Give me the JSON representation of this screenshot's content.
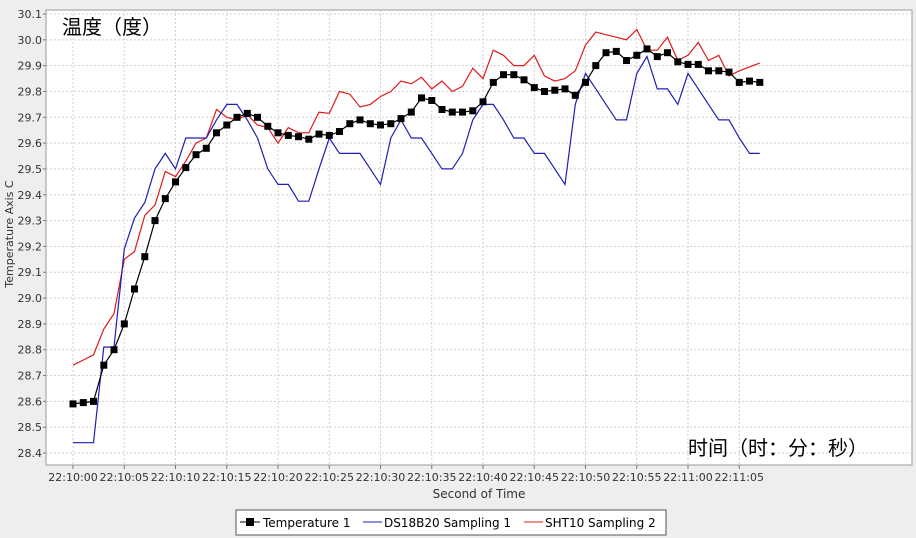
{
  "chart_data": {
    "type": "line",
    "title_top_left": "温度（度）",
    "annotation_bottom_right": "时间（时：分：秒）",
    "xlabel": "Second of Time",
    "ylabel": "Temperature Axis C",
    "ylim": [
      28.4,
      30.1
    ],
    "x_tick_labels": [
      "22:10:00",
      "22:10:05",
      "22:10:10",
      "22:10:15",
      "22:10:20",
      "22:10:25",
      "22:10:30",
      "22:10:35",
      "22:10:40",
      "22:10:45",
      "22:10:50",
      "22:10:55",
      "22:11:00",
      "22:11:05"
    ],
    "y_ticks": [
      28.4,
      28.5,
      28.6,
      28.7,
      28.8,
      28.9,
      29.0,
      29.1,
      29.2,
      29.3,
      29.4,
      29.5,
      29.6,
      29.7,
      29.8,
      29.9,
      30.0,
      30.1
    ],
    "y_tick_labels": [
      "28.4",
      "28.5",
      "28.6",
      "28.7",
      "28.8",
      "28.9",
      "29.0",
      "29.1",
      "29.2",
      "29.3",
      "29.4",
      "29.5",
      "29.6",
      "29.7",
      "29.8",
      "29.9",
      "30.0",
      "30.1"
    ],
    "grid": true,
    "legend_position": "bottom-center",
    "series": [
      {
        "name": "Temperature 1",
        "color": "#000000",
        "marker": "square",
        "values": [
          {
            "t": 0,
            "v": 28.59
          },
          {
            "t": 1,
            "v": 28.595
          },
          {
            "t": 2,
            "v": 28.6
          },
          {
            "t": 3,
            "v": 28.74
          },
          {
            "t": 4,
            "v": 28.8
          },
          {
            "t": 5,
            "v": 28.9
          },
          {
            "t": 6,
            "v": 29.035
          },
          {
            "t": 7,
            "v": 29.16
          },
          {
            "t": 8,
            "v": 29.3
          },
          {
            "t": 9,
            "v": 29.385
          },
          {
            "t": 10,
            "v": 29.45
          },
          {
            "t": 11,
            "v": 29.505
          },
          {
            "t": 12,
            "v": 29.555
          },
          {
            "t": 13,
            "v": 29.58
          },
          {
            "t": 14,
            "v": 29.64
          },
          {
            "t": 15,
            "v": 29.67
          },
          {
            "t": 16,
            "v": 29.7
          },
          {
            "t": 17,
            "v": 29.715
          },
          {
            "t": 18,
            "v": 29.7
          },
          {
            "t": 19,
            "v": 29.665
          },
          {
            "t": 20,
            "v": 29.64
          },
          {
            "t": 21,
            "v": 29.63
          },
          {
            "t": 22,
            "v": 29.625
          },
          {
            "t": 23,
            "v": 29.615
          },
          {
            "t": 24,
            "v": 29.635
          },
          {
            "t": 25,
            "v": 29.63
          },
          {
            "t": 26,
            "v": 29.645
          },
          {
            "t": 27,
            "v": 29.675
          },
          {
            "t": 28,
            "v": 29.69
          },
          {
            "t": 29,
            "v": 29.675
          },
          {
            "t": 30,
            "v": 29.67
          },
          {
            "t": 31,
            "v": 29.675
          },
          {
            "t": 32,
            "v": 29.695
          },
          {
            "t": 33,
            "v": 29.72
          },
          {
            "t": 34,
            "v": 29.775
          },
          {
            "t": 35,
            "v": 29.765
          },
          {
            "t": 36,
            "v": 29.73
          },
          {
            "t": 37,
            "v": 29.72
          },
          {
            "t": 38,
            "v": 29.72
          },
          {
            "t": 39,
            "v": 29.725
          },
          {
            "t": 40,
            "v": 29.76
          },
          {
            "t": 41,
            "v": 29.835
          },
          {
            "t": 42,
            "v": 29.865
          },
          {
            "t": 43,
            "v": 29.865
          },
          {
            "t": 44,
            "v": 29.845
          },
          {
            "t": 45,
            "v": 29.815
          },
          {
            "t": 46,
            "v": 29.8
          },
          {
            "t": 47,
            "v": 29.805
          },
          {
            "t": 48,
            "v": 29.81
          },
          {
            "t": 49,
            "v": 29.785
          },
          {
            "t": 50,
            "v": 29.835
          },
          {
            "t": 51,
            "v": 29.9
          },
          {
            "t": 52,
            "v": 29.95
          },
          {
            "t": 53,
            "v": 29.955
          },
          {
            "t": 54,
            "v": 29.92
          },
          {
            "t": 55,
            "v": 29.94
          },
          {
            "t": 56,
            "v": 29.965
          },
          {
            "t": 57,
            "v": 29.935
          },
          {
            "t": 58,
            "v": 29.95
          },
          {
            "t": 59,
            "v": 29.915
          },
          {
            "t": 60,
            "v": 29.905
          },
          {
            "t": 61,
            "v": 29.905
          },
          {
            "t": 62,
            "v": 29.88
          },
          {
            "t": 63,
            "v": 29.88
          },
          {
            "t": 64,
            "v": 29.875
          },
          {
            "t": 65,
            "v": 29.835
          },
          {
            "t": 66,
            "v": 29.84
          },
          {
            "t": 67,
            "v": 29.835
          }
        ]
      },
      {
        "name": "DS18B20 Sampling 1",
        "color": "#1f1fb4",
        "marker": "none",
        "values": [
          {
            "t": 0,
            "v": 28.44
          },
          {
            "t": 1,
            "v": 28.44
          },
          {
            "t": 2,
            "v": 28.44
          },
          {
            "t": 3,
            "v": 28.81
          },
          {
            "t": 4,
            "v": 28.81
          },
          {
            "t": 5,
            "v": 29.19
          },
          {
            "t": 6,
            "v": 29.31
          },
          {
            "t": 7,
            "v": 29.37
          },
          {
            "t": 8,
            "v": 29.5
          },
          {
            "t": 9,
            "v": 29.56
          },
          {
            "t": 10,
            "v": 29.5
          },
          {
            "t": 11,
            "v": 29.62
          },
          {
            "t": 12,
            "v": 29.62
          },
          {
            "t": 13,
            "v": 29.62
          },
          {
            "t": 14,
            "v": 29.69
          },
          {
            "t": 15,
            "v": 29.75
          },
          {
            "t": 16,
            "v": 29.75
          },
          {
            "t": 17,
            "v": 29.69
          },
          {
            "t": 18,
            "v": 29.62
          },
          {
            "t": 19,
            "v": 29.5
          },
          {
            "t": 20,
            "v": 29.44
          },
          {
            "t": 21,
            "v": 29.44
          },
          {
            "t": 22,
            "v": 29.375
          },
          {
            "t": 23,
            "v": 29.375
          },
          {
            "t": 24,
            "v": 29.5
          },
          {
            "t": 25,
            "v": 29.62
          },
          {
            "t": 26,
            "v": 29.56
          },
          {
            "t": 27,
            "v": 29.56
          },
          {
            "t": 28,
            "v": 29.56
          },
          {
            "t": 29,
            "v": 29.5
          },
          {
            "t": 30,
            "v": 29.44
          },
          {
            "t": 31,
            "v": 29.62
          },
          {
            "t": 32,
            "v": 29.69
          },
          {
            "t": 33,
            "v": 29.62
          },
          {
            "t": 34,
            "v": 29.62
          },
          {
            "t": 35,
            "v": 29.56
          },
          {
            "t": 36,
            "v": 29.5
          },
          {
            "t": 37,
            "v": 29.5
          },
          {
            "t": 38,
            "v": 29.56
          },
          {
            "t": 39,
            "v": 29.69
          },
          {
            "t": 40,
            "v": 29.75
          },
          {
            "t": 41,
            "v": 29.75
          },
          {
            "t": 42,
            "v": 29.69
          },
          {
            "t": 43,
            "v": 29.62
          },
          {
            "t": 44,
            "v": 29.62
          },
          {
            "t": 45,
            "v": 29.56
          },
          {
            "t": 46,
            "v": 29.56
          },
          {
            "t": 47,
            "v": 29.5
          },
          {
            "t": 48,
            "v": 29.44
          },
          {
            "t": 49,
            "v": 29.75
          },
          {
            "t": 50,
            "v": 29.87
          },
          {
            "t": 51,
            "v": 29.81
          },
          {
            "t": 52,
            "v": 29.75
          },
          {
            "t": 53,
            "v": 29.69
          },
          {
            "t": 54,
            "v": 29.69
          },
          {
            "t": 55,
            "v": 29.87
          },
          {
            "t": 56,
            "v": 29.935
          },
          {
            "t": 57,
            "v": 29.81
          },
          {
            "t": 58,
            "v": 29.81
          },
          {
            "t": 59,
            "v": 29.75
          },
          {
            "t": 60,
            "v": 29.87
          },
          {
            "t": 61,
            "v": 29.81
          },
          {
            "t": 62,
            "v": 29.75
          },
          {
            "t": 63,
            "v": 29.69
          },
          {
            "t": 64,
            "v": 29.69
          },
          {
            "t": 65,
            "v": 29.62
          },
          {
            "t": 66,
            "v": 29.56
          },
          {
            "t": 67,
            "v": 29.56
          }
        ]
      },
      {
        "name": "SHT10 Sampling 2",
        "color": "#e01b1b",
        "marker": "none",
        "values": [
          {
            "t": 0,
            "v": 28.74
          },
          {
            "t": 1,
            "v": 28.76
          },
          {
            "t": 2,
            "v": 28.78
          },
          {
            "t": 3,
            "v": 28.88
          },
          {
            "t": 4,
            "v": 28.94
          },
          {
            "t": 5,
            "v": 29.15
          },
          {
            "t": 6,
            "v": 29.18
          },
          {
            "t": 7,
            "v": 29.32
          },
          {
            "t": 8,
            "v": 29.36
          },
          {
            "t": 9,
            "v": 29.49
          },
          {
            "t": 10,
            "v": 29.47
          },
          {
            "t": 11,
            "v": 29.53
          },
          {
            "t": 12,
            "v": 29.6
          },
          {
            "t": 13,
            "v": 29.62
          },
          {
            "t": 14,
            "v": 29.73
          },
          {
            "t": 15,
            "v": 29.7
          },
          {
            "t": 16,
            "v": 29.69
          },
          {
            "t": 17,
            "v": 29.71
          },
          {
            "t": 18,
            "v": 29.67
          },
          {
            "t": 19,
            "v": 29.66
          },
          {
            "t": 20,
            "v": 29.6
          },
          {
            "t": 21,
            "v": 29.66
          },
          {
            "t": 22,
            "v": 29.64
          },
          {
            "t": 23,
            "v": 29.64
          },
          {
            "t": 24,
            "v": 29.72
          },
          {
            "t": 25,
            "v": 29.715
          },
          {
            "t": 26,
            "v": 29.8
          },
          {
            "t": 27,
            "v": 29.79
          },
          {
            "t": 28,
            "v": 29.74
          },
          {
            "t": 29,
            "v": 29.75
          },
          {
            "t": 30,
            "v": 29.78
          },
          {
            "t": 31,
            "v": 29.8
          },
          {
            "t": 32,
            "v": 29.84
          },
          {
            "t": 33,
            "v": 29.83
          },
          {
            "t": 34,
            "v": 29.855
          },
          {
            "t": 35,
            "v": 29.81
          },
          {
            "t": 36,
            "v": 29.84
          },
          {
            "t": 37,
            "v": 29.8
          },
          {
            "t": 38,
            "v": 29.82
          },
          {
            "t": 39,
            "v": 29.89
          },
          {
            "t": 40,
            "v": 29.85
          },
          {
            "t": 41,
            "v": 29.96
          },
          {
            "t": 42,
            "v": 29.94
          },
          {
            "t": 43,
            "v": 29.9
          },
          {
            "t": 44,
            "v": 29.9
          },
          {
            "t": 45,
            "v": 29.94
          },
          {
            "t": 46,
            "v": 29.86
          },
          {
            "t": 47,
            "v": 29.84
          },
          {
            "t": 48,
            "v": 29.85
          },
          {
            "t": 49,
            "v": 29.88
          },
          {
            "t": 50,
            "v": 29.98
          },
          {
            "t": 51,
            "v": 30.03
          },
          {
            "t": 52,
            "v": 30.02
          },
          {
            "t": 53,
            "v": 30.01
          },
          {
            "t": 54,
            "v": 30.0
          },
          {
            "t": 55,
            "v": 30.04
          },
          {
            "t": 56,
            "v": 29.96
          },
          {
            "t": 57,
            "v": 29.96
          },
          {
            "t": 58,
            "v": 30.01
          },
          {
            "t": 59,
            "v": 29.92
          },
          {
            "t": 60,
            "v": 29.94
          },
          {
            "t": 61,
            "v": 29.99
          },
          {
            "t": 62,
            "v": 29.92
          },
          {
            "t": 63,
            "v": 29.94
          },
          {
            "t": 64,
            "v": 29.86
          },
          {
            "t": 65,
            "v": 29.88
          },
          {
            "t": 66,
            "v": 29.895
          },
          {
            "t": 67,
            "v": 29.91
          }
        ]
      }
    ]
  }
}
